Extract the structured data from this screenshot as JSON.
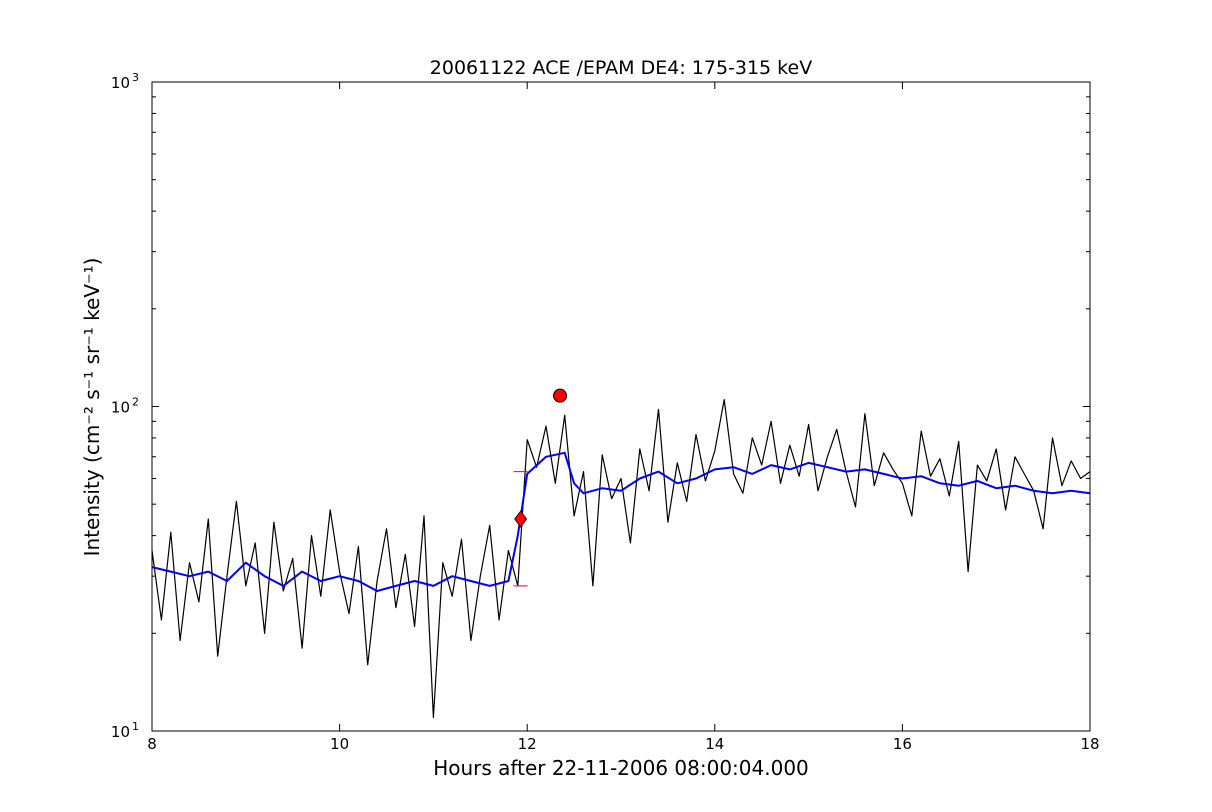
{
  "chart_data": {
    "type": "line",
    "title": "20061122 ACE /EPAM DE4: 175-315 keV",
    "xlabel": "Hours after 22-11-2006 08:00:04.000",
    "ylabel": "Intensity (cm⁻² s⁻¹ sr⁻¹ keV⁻¹)",
    "xlim": [
      8,
      18
    ],
    "ylim": [
      10,
      1000
    ],
    "yscale": "log",
    "grid": false,
    "x_ticks": [
      {
        "value": 8,
        "label": "8"
      },
      {
        "value": 10,
        "label": "10"
      },
      {
        "value": 12,
        "label": "12"
      },
      {
        "value": 14,
        "label": "14"
      },
      {
        "value": 16,
        "label": "16"
      },
      {
        "value": 18,
        "label": "18"
      }
    ],
    "y_ticks": [
      {
        "value": 10,
        "base": "10",
        "exp": "1"
      },
      {
        "value": 100,
        "base": "10",
        "exp": "2"
      },
      {
        "value": 1000,
        "base": "10",
        "exp": "3"
      }
    ],
    "series": [
      {
        "color": "#000000",
        "x": [
          8.0,
          8.1,
          8.2,
          8.3,
          8.4,
          8.5,
          8.6,
          8.7,
          8.8,
          8.9,
          9.0,
          9.1,
          9.2,
          9.3,
          9.4,
          9.5,
          9.6,
          9.7,
          9.8,
          9.9,
          10.0,
          10.1,
          10.2,
          10.3,
          10.4,
          10.5,
          10.6,
          10.7,
          10.8,
          10.9,
          11.0,
          11.1,
          11.2,
          11.3,
          11.4,
          11.5,
          11.6,
          11.7,
          11.8,
          11.9,
          12.0,
          12.1,
          12.2,
          12.3,
          12.4,
          12.5,
          12.6,
          12.7,
          12.8,
          12.9,
          13.0,
          13.1,
          13.2,
          13.3,
          13.4,
          13.5,
          13.6,
          13.7,
          13.8,
          13.9,
          14.0,
          14.1,
          14.2,
          14.3,
          14.4,
          14.5,
          14.6,
          14.7,
          14.8,
          14.9,
          15.0,
          15.1,
          15.2,
          15.3,
          15.4,
          15.5,
          15.6,
          15.7,
          15.8,
          15.9,
          16.0,
          16.1,
          16.2,
          16.3,
          16.4,
          16.5,
          16.6,
          16.7,
          16.8,
          16.9,
          17.0,
          17.1,
          17.2,
          17.3,
          17.4,
          17.5,
          17.6,
          17.7,
          17.8,
          17.9,
          18.0
        ],
        "values": [
          36,
          22,
          41,
          19,
          33,
          25,
          45,
          17,
          30,
          51,
          28,
          38,
          20,
          44,
          27,
          34,
          18,
          40,
          26,
          48,
          31,
          23,
          37,
          16,
          29,
          42,
          24,
          35,
          21,
          46,
          11,
          33,
          26,
          39,
          19,
          30,
          43,
          22,
          36,
          28,
          79,
          65,
          87,
          58,
          94,
          46,
          63,
          28,
          71,
          52,
          60,
          38,
          74,
          55,
          98,
          44,
          67,
          51,
          82,
          59,
          73,
          105,
          62,
          54,
          80,
          66,
          90,
          58,
          76,
          61,
          88,
          55,
          70,
          85,
          63,
          49,
          95,
          57,
          72,
          64,
          58,
          46,
          84,
          61,
          69,
          53,
          78,
          31,
          66,
          59,
          74,
          48,
          70,
          62,
          55,
          42,
          80,
          57,
          68,
          60,
          63
        ]
      },
      {
        "color": "#0000ff",
        "x": [
          8.0,
          8.2,
          8.4,
          8.6,
          8.8,
          9.0,
          9.2,
          9.4,
          9.6,
          9.8,
          10.0,
          10.2,
          10.4,
          10.6,
          10.8,
          11.0,
          11.2,
          11.4,
          11.6,
          11.8,
          11.9,
          12.0,
          12.2,
          12.4,
          12.5,
          12.6,
          12.8,
          13.0,
          13.2,
          13.4,
          13.6,
          13.8,
          14.0,
          14.2,
          14.4,
          14.6,
          14.8,
          15.0,
          15.2,
          15.4,
          15.6,
          15.8,
          16.0,
          16.2,
          16.4,
          16.6,
          16.8,
          17.0,
          17.2,
          17.4,
          17.6,
          17.8,
          18.0
        ],
        "values": [
          32,
          31,
          30,
          31,
          29,
          33,
          30,
          28,
          31,
          29,
          30,
          29,
          27,
          28,
          29,
          28,
          30,
          29,
          28,
          29,
          40,
          62,
          70,
          72,
          58,
          54,
          56,
          55,
          60,
          63,
          58,
          60,
          64,
          65,
          62,
          66,
          64,
          67,
          65,
          63,
          64,
          62,
          60,
          61,
          58,
          57,
          59,
          56,
          57,
          55,
          54,
          55,
          54
        ]
      }
    ],
    "markers": [
      {
        "shape": "diamond",
        "x": 11.93,
        "y": 45,
        "color": "#ff0000"
      },
      {
        "shape": "circle",
        "x": 12.35,
        "y": 108,
        "color": "#ff0000"
      },
      {
        "shape": "tick",
        "x": 11.93,
        "y": 63,
        "color": "#ff0000"
      },
      {
        "shape": "tick",
        "x": 11.93,
        "y": 28,
        "color": "#ff0000"
      }
    ]
  }
}
